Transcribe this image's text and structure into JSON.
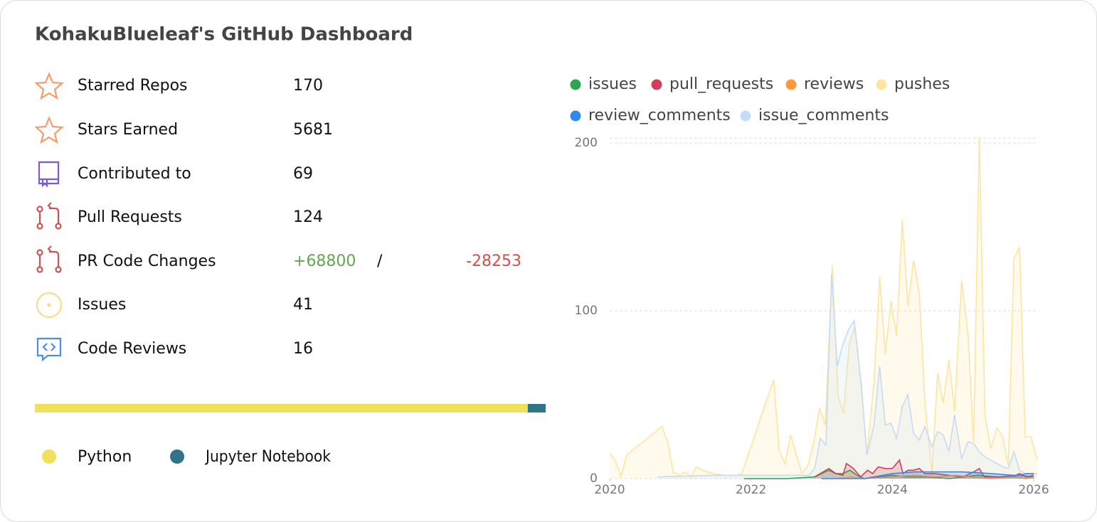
{
  "header": {
    "title": "KohakuBlueleaf's GitHub Dashboard"
  },
  "stats": [
    {
      "label": "Starred Repos",
      "value": "170"
    },
    {
      "label": "Stars Earned",
      "value": "5681"
    },
    {
      "label": "Contributed to",
      "value": "69"
    },
    {
      "label": "Pull Requests",
      "value": "124"
    },
    {
      "label": "PR Code Changes",
      "added": "+68800",
      "separator": "/",
      "removed": "-28253"
    },
    {
      "label": "Issues",
      "value": "41"
    },
    {
      "label": "Code Reviews",
      "value": "16"
    }
  ],
  "languages": [
    {
      "name": "Python",
      "color": "#f1e05a",
      "share": 96.5
    },
    {
      "name": "Jupyter Notebook",
      "color": "#2f7489",
      "share": 3.5
    }
  ],
  "chart_data": {
    "type": "area",
    "xlim": [
      2020,
      2026.1
    ],
    "xticks": [
      2020,
      2022,
      2024,
      2026
    ],
    "ylim": [
      0,
      203
    ],
    "yticks": [
      0,
      100,
      200
    ],
    "grid": true,
    "series": [
      {
        "name": "issues",
        "color": "#2da44e",
        "x": [
          2021.9,
          2022.5,
          2022.9,
          2023.1,
          2023.2,
          2023.3,
          2023.4,
          2023.5,
          2023.6,
          2024.0,
          2024.2,
          2024.5,
          2024.8,
          2025.2,
          2025.5,
          2025.8,
          2026.0
        ],
        "values": [
          0,
          0,
          1,
          5,
          3,
          3,
          5,
          2,
          0,
          2,
          1,
          1,
          0,
          2,
          1,
          2,
          1
        ]
      },
      {
        "name": "pull_requests",
        "color": "#cf3f5b",
        "x": [
          2022.9,
          2023.1,
          2023.2,
          2023.3,
          2023.35,
          2023.45,
          2023.55,
          2023.65,
          2023.72,
          2023.8,
          2023.9,
          2024.0,
          2024.1,
          2024.15,
          2024.22,
          2024.3,
          2024.38,
          2024.46,
          2024.6,
          2024.8,
          2025.0,
          2025.15,
          2025.23,
          2025.3,
          2025.5,
          2025.7,
          2025.8,
          2025.9,
          2026.0
        ],
        "values": [
          1,
          6,
          3,
          2,
          9,
          6,
          1,
          5,
          3,
          7,
          6,
          6,
          11,
          3,
          5,
          5,
          6,
          3,
          3,
          2,
          1,
          4,
          6,
          1,
          1,
          1,
          3,
          1,
          2
        ]
      },
      {
        "name": "reviews",
        "color": "#fd9a3e",
        "x": [
          2023.2,
          2023.4,
          2023.6,
          2024.0,
          2024.3,
          2024.6,
          2024.9,
          2025.1,
          2025.4,
          2025.7,
          2025.9,
          2026.0
        ],
        "values": [
          0,
          1,
          0,
          1,
          2,
          1,
          2,
          1,
          0,
          1,
          0,
          1
        ]
      },
      {
        "name": "pushes",
        "color": "#fde5a0",
        "x": [
          2020.0,
          2020.08,
          2020.16,
          2020.24,
          2020.74,
          2020.82,
          2020.9,
          2020.98,
          2021.07,
          2021.15,
          2021.23,
          2021.31,
          2021.47,
          2021.63,
          2021.79,
          2021.87,
          2022.32,
          2022.4,
          2022.48,
          2022.56,
          2022.72,
          2022.8,
          2022.89,
          2022.97,
          2023.05,
          2023.15,
          2023.23,
          2023.31,
          2023.39,
          2023.47,
          2023.56,
          2023.64,
          2023.74,
          2023.82,
          2023.9,
          2023.98,
          2024.06,
          2024.14,
          2024.22,
          2024.3,
          2024.38,
          2024.46,
          2024.56,
          2024.64,
          2024.72,
          2024.8,
          2024.88,
          2024.98,
          2025.07,
          2025.15,
          2025.23,
          2025.31,
          2025.39,
          2025.48,
          2025.56,
          2025.64,
          2025.72,
          2025.8,
          2025.88,
          2025.96,
          2026.05
        ],
        "values": [
          15,
          11,
          1,
          14,
          31,
          22,
          4,
          2,
          4,
          1,
          7,
          5,
          3,
          2,
          2,
          3,
          59,
          17,
          9,
          26,
          3,
          7,
          22,
          42,
          32,
          127,
          49,
          39,
          80,
          91,
          54,
          14,
          57,
          120,
          74,
          106,
          85,
          154,
          103,
          130,
          111,
          46,
          3,
          63,
          45,
          71,
          40,
          118,
          86,
          22,
          203,
          38,
          18,
          30,
          25,
          8,
          131,
          138,
          25,
          25,
          11
        ]
      },
      {
        "name": "review_comments",
        "color": "#2f88ef",
        "x": [
          2023.0,
          2023.6,
          2024.0,
          2024.3,
          2025.0,
          2025.4,
          2025.7,
          2025.8,
          2025.9,
          2026.0
        ],
        "values": [
          0,
          0,
          3,
          4,
          4,
          3,
          2,
          2,
          3,
          3
        ]
      },
      {
        "name": "issue_comments",
        "color": "#c4dcf7",
        "x": [
          2020.68,
          2021.47,
          2021.87,
          2022.82,
          2022.9,
          2022.98,
          2023.06,
          2023.14,
          2023.22,
          2023.3,
          2023.38,
          2023.46,
          2023.56,
          2023.64,
          2023.74,
          2023.82,
          2023.9,
          2023.98,
          2024.06,
          2024.14,
          2024.22,
          2024.3,
          2024.38,
          2024.46,
          2024.56,
          2024.64,
          2024.72,
          2024.8,
          2024.88,
          2024.98,
          2025.07,
          2025.15,
          2025.23,
          2025.31,
          2025.48,
          2025.56,
          2025.64,
          2025.72,
          2025.8,
          2025.88,
          2026.05
        ],
        "values": [
          1,
          2,
          2,
          2,
          6,
          24,
          20,
          122,
          67,
          80,
          89,
          94,
          56,
          14,
          32,
          67,
          32,
          33,
          24,
          43,
          50,
          27,
          23,
          31,
          19,
          28,
          26,
          16,
          38,
          12,
          22,
          21,
          16,
          13,
          9,
          7,
          6,
          16,
          5,
          3,
          3
        ]
      }
    ]
  }
}
